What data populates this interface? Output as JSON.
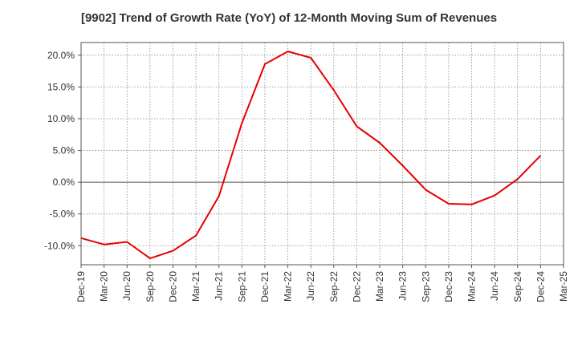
{
  "chart_data": {
    "type": "line",
    "title": "[9902]  Trend of Growth Rate (YoY) of 12-Month Moving Sum of Revenues",
    "xlabel": "",
    "ylabel": "",
    "x_ticks": [
      "Dec-19",
      "Mar-20",
      "Jun-20",
      "Sep-20",
      "Dec-20",
      "Mar-21",
      "Jun-21",
      "Sep-21",
      "Dec-21",
      "Mar-22",
      "Jun-22",
      "Sep-22",
      "Dec-22",
      "Mar-23",
      "Jun-23",
      "Sep-23",
      "Dec-23",
      "Mar-24",
      "Jun-24",
      "Sep-24",
      "Dec-24",
      "Mar-25"
    ],
    "y_ticks": [
      "20.0%",
      "15.0%",
      "10.0%",
      "5.0%",
      "0.0%",
      "-5.0%",
      "-10.0%"
    ],
    "y_tick_values": [
      20,
      15,
      10,
      5,
      0,
      -5,
      -10
    ],
    "ylim": [
      -13,
      22
    ],
    "grid": true,
    "series": [
      {
        "color": "#e60000",
        "x": [
          "Dec-19",
          "Mar-20",
          "Jun-20",
          "Sep-20",
          "Dec-20",
          "Mar-21",
          "Jun-21",
          "Sep-21",
          "Dec-21",
          "Mar-22",
          "Jun-22",
          "Sep-22",
          "Dec-22",
          "Mar-23",
          "Jun-23",
          "Sep-23",
          "Dec-23",
          "Mar-24",
          "Jun-24",
          "Sep-24",
          "Dec-24"
        ],
        "values": [
          -8.8,
          -9.8,
          -9.4,
          -12.0,
          -10.8,
          -8.4,
          -2.2,
          9.3,
          18.6,
          20.6,
          19.6,
          14.5,
          8.8,
          6.2,
          2.6,
          -1.2,
          -3.4,
          -3.5,
          -2.1,
          0.5,
          4.2
        ]
      }
    ]
  }
}
